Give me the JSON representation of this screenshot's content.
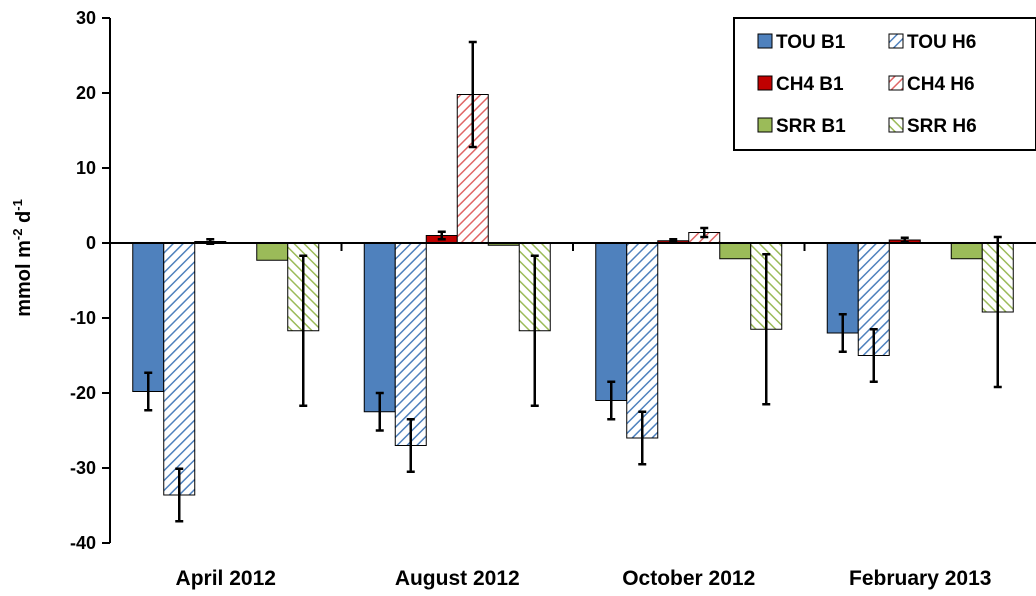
{
  "chart_data": {
    "type": "bar",
    "ylabel": "mmol m-2 d-1",
    "ylabel_parts": {
      "prefix": "mmol m",
      "sup1": "-2",
      "mid": " d",
      "sup2": "-1"
    },
    "ylim": [
      -40,
      30
    ],
    "yticks": [
      30,
      20,
      10,
      0,
      -10,
      -20,
      -30,
      -40
    ],
    "categories": [
      "April 2012",
      "August 2012",
      "October 2012",
      "February 2013"
    ],
    "legend_position": "top-right",
    "series": [
      {
        "name": "TOU B1",
        "fill": "solid",
        "color": "#4f81bd",
        "values": [
          -19.8,
          -22.5,
          -21.0,
          -12.0
        ],
        "errors": [
          2.5,
          2.5,
          2.5,
          2.5
        ]
      },
      {
        "name": "TOU H6",
        "fill": "hatch",
        "color": "#4f81bd",
        "values": [
          -33.6,
          -27.0,
          -26.0,
          -15.0
        ],
        "errors": [
          3.5,
          3.5,
          3.5,
          3.5
        ]
      },
      {
        "name": "CH4 B1",
        "fill": "solid",
        "color": "#c00000",
        "values": [
          0.2,
          1.0,
          0.3,
          0.4
        ],
        "errors": [
          0.3,
          0.5,
          0.2,
          0.3
        ]
      },
      {
        "name": "CH4 H6",
        "fill": "hatch",
        "color": "#e06666",
        "values": [
          0.0,
          19.8,
          1.4,
          0.0
        ],
        "errors": [
          0.0,
          7.0,
          0.6,
          0.0
        ]
      },
      {
        "name": "SRR B1",
        "fill": "solid",
        "color": "#9bbb59",
        "values": [
          -2.3,
          -0.3,
          -2.1,
          -2.1
        ],
        "errors": [
          0,
          0,
          0,
          0
        ]
      },
      {
        "name": "SRR H6",
        "fill": "hatch",
        "color": "#9bbb59",
        "values": [
          -11.7,
          -11.7,
          -11.5,
          -9.2
        ],
        "errors": [
          10.0,
          10.0,
          10.0,
          10.0
        ]
      }
    ]
  }
}
